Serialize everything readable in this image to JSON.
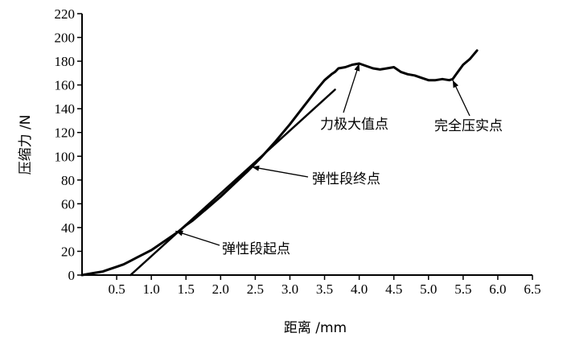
{
  "chart_data": {
    "type": "line",
    "xlabel": "距离 /mm",
    "ylabel": "压缩力 /N",
    "xlim": [
      0,
      6.5
    ],
    "ylim": [
      0,
      220
    ],
    "xticks": [
      0.5,
      1.0,
      1.5,
      2.0,
      2.5,
      3.0,
      3.5,
      4.0,
      4.5,
      5.0,
      5.5,
      6.0,
      6.5
    ],
    "xtick_labels": [
      "0.5",
      "1.0",
      "1.5",
      "2.0",
      "2.5",
      "3.0",
      "3.5",
      "4.0",
      "4.5",
      "5.0",
      "5.5",
      "6.0",
      "6.5"
    ],
    "yticks": [
      0,
      20,
      40,
      60,
      80,
      100,
      120,
      140,
      160,
      180,
      200,
      220
    ],
    "ytick_labels": [
      "0",
      "20",
      "40",
      "60",
      "80",
      "100",
      "120",
      "140",
      "160",
      "180",
      "200",
      "220"
    ],
    "origin_label": "0",
    "grid": false,
    "series": [
      {
        "x": [
          0,
          0.1,
          0.2,
          0.3,
          0.4,
          0.5,
          0.6,
          0.7,
          0.8,
          0.9,
          1.0,
          1.1,
          1.2,
          1.3,
          1.4,
          1.5,
          1.6,
          1.8,
          2.0,
          2.2,
          2.4,
          2.6,
          2.8,
          3.0,
          3.2,
          3.4,
          3.5,
          3.6,
          3.65,
          3.7,
          3.8,
          3.9,
          4.0,
          4.1,
          4.2,
          4.3,
          4.4,
          4.5,
          4.6,
          4.7,
          4.8,
          4.9,
          5.0,
          5.1,
          5.2,
          5.3,
          5.35,
          5.4,
          5.5,
          5.6,
          5.7
        ],
        "y": [
          0,
          1,
          2,
          3,
          5,
          7,
          9,
          12,
          15,
          18,
          21,
          25,
          29,
          33,
          37,
          42,
          46,
          56,
          66,
          77,
          88,
          100,
          113,
          127,
          142,
          157,
          164,
          169,
          171,
          174,
          175,
          177,
          178,
          176,
          174,
          173,
          174,
          175,
          171,
          169,
          168,
          166,
          164,
          164,
          165,
          164,
          165,
          169,
          177,
          182,
          189
        ]
      },
      {
        "x": [
          0.7,
          3.65
        ],
        "y": [
          0,
          156
        ]
      }
    ],
    "annotations": [
      {
        "text": "弹性段起点",
        "x": 1.35,
        "y": 37
      },
      {
        "text": "弹性段终点",
        "x": 2.45,
        "y": 91
      },
      {
        "text": "力极大值点",
        "x": 4.0,
        "y": 178
      },
      {
        "text": "完全压实点",
        "x": 5.35,
        "y": 164
      }
    ]
  }
}
